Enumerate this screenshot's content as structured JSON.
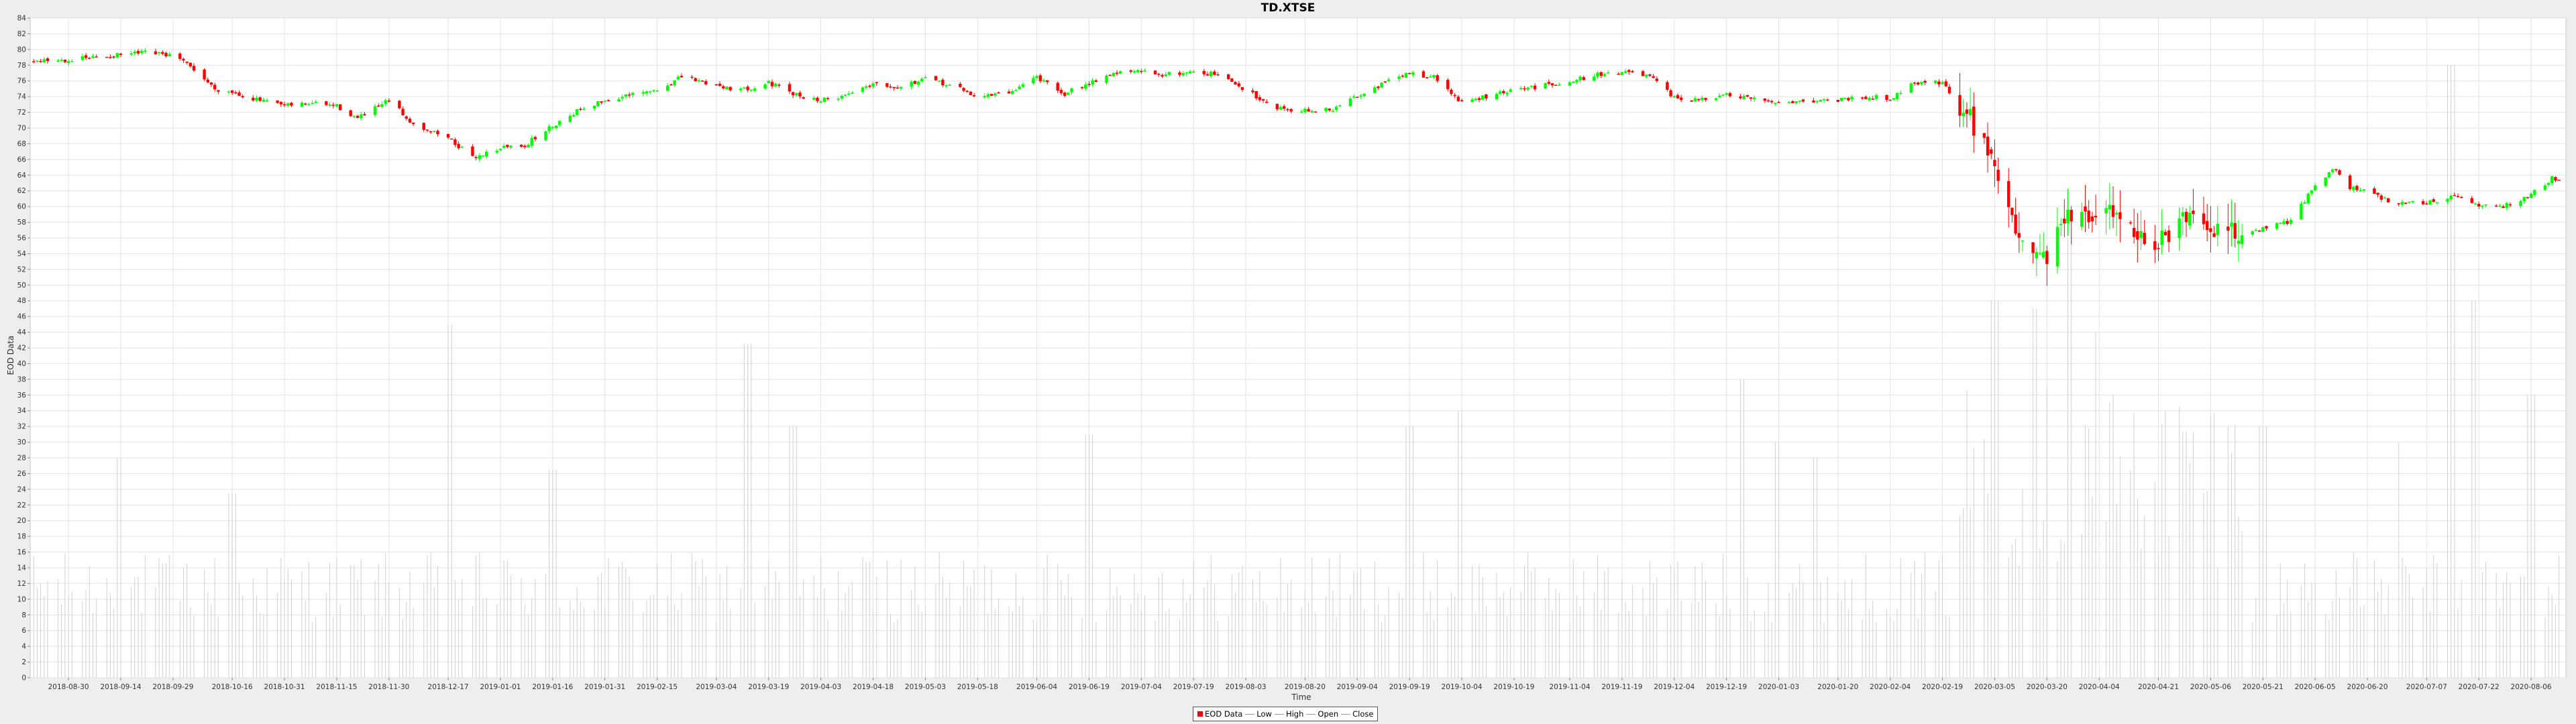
{
  "title": "TD.XTSE",
  "colors": {
    "background": "#eeeeee",
    "plot_background": "#ffffff",
    "grid": "#e3e3e3",
    "up": "#00ff00",
    "down": "#ff0000",
    "volume": "#d0d0d0"
  },
  "legend": {
    "items": [
      {
        "label": "EOD Data",
        "swatch": "box",
        "color": "#ff0000"
      },
      {
        "label": "Low",
        "swatch": "line",
        "color": "#999999"
      },
      {
        "label": "High",
        "swatch": "line",
        "color": "#999999"
      },
      {
        "label": "Open",
        "swatch": "line",
        "color": "#999999"
      },
      {
        "label": "Close",
        "swatch": "line",
        "color": "#999999"
      }
    ]
  },
  "chart_data": {
    "type": "candlestick",
    "title": "TD.XTSE",
    "xlabel": "Time",
    "ylabel": "EOD Data",
    "ylim": [
      0,
      84
    ],
    "ytick_step": 2,
    "grid": true,
    "legend_position": "bottom",
    "x_tick_labels": [
      "2018-08-30",
      "2018-09-14",
      "2018-09-29",
      "2018-10-16",
      "2018-10-31",
      "2018-11-15",
      "2018-11-30",
      "2018-12-17",
      "2019-01-01",
      "2019-01-16",
      "2019-01-31",
      "2019-02-15",
      "2019-03-04",
      "2019-03-19",
      "2019-04-03",
      "2019-04-18",
      "2019-05-03",
      "2019-05-18",
      "2019-06-04",
      "2019-06-19",
      "2019-07-04",
      "2019-07-19",
      "2019-08-03",
      "2019-08-20",
      "2019-09-04",
      "2019-09-19",
      "2019-10-04",
      "2019-10-19",
      "2019-11-04",
      "2019-11-19",
      "2019-12-04",
      "2019-12-19",
      "2020-01-03",
      "2020-01-20",
      "2020-02-04",
      "2020-02-19",
      "2020-03-05",
      "2020-03-20",
      "2020-04-04",
      "2020-04-21",
      "2020-05-06",
      "2020-05-21",
      "2020-06-05",
      "2020-06-20",
      "2020-07-07",
      "2020-07-22",
      "2020-08-06"
    ],
    "close_series": [
      {
        "date": "2018-08-23",
        "close": 78.6
      },
      {
        "date": "2018-08-30",
        "close": 78.7
      },
      {
        "date": "2018-09-07",
        "close": 79.0
      },
      {
        "date": "2018-09-14",
        "close": 79.3
      },
      {
        "date": "2018-09-21",
        "close": 79.6
      },
      {
        "date": "2018-09-29",
        "close": 79.2
      },
      {
        "date": "2018-10-05",
        "close": 77.5
      },
      {
        "date": "2018-10-11",
        "close": 75.0
      },
      {
        "date": "2018-10-16",
        "close": 74.6
      },
      {
        "date": "2018-10-23",
        "close": 73.6
      },
      {
        "date": "2018-10-31",
        "close": 72.8
      },
      {
        "date": "2018-11-08",
        "close": 73.2
      },
      {
        "date": "2018-11-15",
        "close": 72.8
      },
      {
        "date": "2018-11-21",
        "close": 71.2
      },
      {
        "date": "2018-11-30",
        "close": 73.5
      },
      {
        "date": "2018-12-07",
        "close": 70.5
      },
      {
        "date": "2018-12-17",
        "close": 68.8
      },
      {
        "date": "2018-12-24",
        "close": 66.2
      },
      {
        "date": "2019-01-01",
        "close": 67.5
      },
      {
        "date": "2019-01-08",
        "close": 67.8
      },
      {
        "date": "2019-01-16",
        "close": 70.3
      },
      {
        "date": "2019-01-24",
        "close": 72.5
      },
      {
        "date": "2019-01-31",
        "close": 73.5
      },
      {
        "date": "2019-02-08",
        "close": 74.2
      },
      {
        "date": "2019-02-15",
        "close": 74.8
      },
      {
        "date": "2019-02-22",
        "close": 76.5
      },
      {
        "date": "2019-03-04",
        "close": 75.5
      },
      {
        "date": "2019-03-11",
        "close": 74.8
      },
      {
        "date": "2019-03-19",
        "close": 75.8
      },
      {
        "date": "2019-03-26",
        "close": 74.3
      },
      {
        "date": "2019-04-03",
        "close": 73.5
      },
      {
        "date": "2019-04-10",
        "close": 74.2
      },
      {
        "date": "2019-04-18",
        "close": 75.8
      },
      {
        "date": "2019-04-25",
        "close": 75.3
      },
      {
        "date": "2019-05-03",
        "close": 76.2
      },
      {
        "date": "2019-05-10",
        "close": 75.5
      },
      {
        "date": "2019-05-18",
        "close": 74.0
      },
      {
        "date": "2019-05-27",
        "close": 74.5
      },
      {
        "date": "2019-06-04",
        "close": 76.6
      },
      {
        "date": "2019-06-11",
        "close": 74.2
      },
      {
        "date": "2019-06-19",
        "close": 75.8
      },
      {
        "date": "2019-06-26",
        "close": 77.0
      },
      {
        "date": "2019-07-04",
        "close": 77.2
      },
      {
        "date": "2019-07-11",
        "close": 76.8
      },
      {
        "date": "2019-07-19",
        "close": 77.2
      },
      {
        "date": "2019-07-26",
        "close": 76.8
      },
      {
        "date": "2019-08-03",
        "close": 74.8
      },
      {
        "date": "2019-08-12",
        "close": 72.6
      },
      {
        "date": "2019-08-20",
        "close": 72.2
      },
      {
        "date": "2019-08-28",
        "close": 72.3
      },
      {
        "date": "2019-09-04",
        "close": 74.2
      },
      {
        "date": "2019-09-12",
        "close": 75.8
      },
      {
        "date": "2019-09-19",
        "close": 77.0
      },
      {
        "date": "2019-09-26",
        "close": 76.5
      },
      {
        "date": "2019-10-04",
        "close": 73.2
      },
      {
        "date": "2019-10-11",
        "close": 74.0
      },
      {
        "date": "2019-10-19",
        "close": 74.8
      },
      {
        "date": "2019-10-26",
        "close": 75.3
      },
      {
        "date": "2019-11-04",
        "close": 76.0
      },
      {
        "date": "2019-11-12",
        "close": 76.8
      },
      {
        "date": "2019-11-19",
        "close": 77.2
      },
      {
        "date": "2019-11-27",
        "close": 76.5
      },
      {
        "date": "2019-12-04",
        "close": 73.8
      },
      {
        "date": "2019-12-11",
        "close": 73.5
      },
      {
        "date": "2019-12-19",
        "close": 74.2
      },
      {
        "date": "2019-12-27",
        "close": 73.6
      },
      {
        "date": "2020-01-03",
        "close": 73.3
      },
      {
        "date": "2020-01-10",
        "close": 73.5
      },
      {
        "date": "2020-01-20",
        "close": 73.6
      },
      {
        "date": "2020-01-27",
        "close": 74.0
      },
      {
        "date": "2020-02-04",
        "close": 73.8
      },
      {
        "date": "2020-02-11",
        "close": 75.8
      },
      {
        "date": "2020-02-19",
        "close": 75.8
      },
      {
        "date": "2020-02-25",
        "close": 72.0
      },
      {
        "date": "2020-03-01",
        "close": 69.5
      },
      {
        "date": "2020-03-05",
        "close": 65.5
      },
      {
        "date": "2020-03-10",
        "close": 57.5
      },
      {
        "date": "2020-03-15",
        "close": 55.5
      },
      {
        "date": "2020-03-20",
        "close": 53.5
      },
      {
        "date": "2020-03-25",
        "close": 59.0
      },
      {
        "date": "2020-03-30",
        "close": 58.0
      },
      {
        "date": "2020-04-04",
        "close": 59.0
      },
      {
        "date": "2020-04-10",
        "close": 59.5
      },
      {
        "date": "2020-04-15",
        "close": 56.5
      },
      {
        "date": "2020-04-21",
        "close": 55.0
      },
      {
        "date": "2020-04-28",
        "close": 58.0
      },
      {
        "date": "2020-05-06",
        "close": 57.2
      },
      {
        "date": "2020-05-13",
        "close": 56.5
      },
      {
        "date": "2020-05-21",
        "close": 57.2
      },
      {
        "date": "2020-05-28",
        "close": 58.0
      },
      {
        "date": "2020-06-05",
        "close": 62.5
      },
      {
        "date": "2020-06-10",
        "close": 65.0
      },
      {
        "date": "2020-06-15",
        "close": 62.5
      },
      {
        "date": "2020-06-20",
        "close": 61.8
      },
      {
        "date": "2020-06-28",
        "close": 60.5
      },
      {
        "date": "2020-07-07",
        "close": 60.5
      },
      {
        "date": "2020-07-14",
        "close": 61.3
      },
      {
        "date": "2020-07-22",
        "close": 60.2
      },
      {
        "date": "2020-07-29",
        "close": 60.0
      },
      {
        "date": "2020-08-06",
        "close": 61.5
      },
      {
        "date": "2020-08-12",
        "close": 63.6
      }
    ],
    "volume_spikes": [
      {
        "date": "2018-09-14",
        "value": 28
      },
      {
        "date": "2018-10-16",
        "value": 23.5
      },
      {
        "date": "2018-12-17",
        "value": 45
      },
      {
        "date": "2019-01-16",
        "value": 26.5
      },
      {
        "date": "2019-03-13",
        "value": 42.5
      },
      {
        "date": "2019-03-26",
        "value": 32
      },
      {
        "date": "2019-06-19",
        "value": 31
      },
      {
        "date": "2019-09-19",
        "value": 32
      },
      {
        "date": "2019-10-04",
        "value": 34
      },
      {
        "date": "2019-12-23",
        "value": 38
      },
      {
        "date": "2020-01-03",
        "value": 30
      },
      {
        "date": "2020-01-13",
        "value": 28
      },
      {
        "date": "2020-03-05",
        "value": 48
      },
      {
        "date": "2020-03-16",
        "value": 47
      },
      {
        "date": "2020-03-27",
        "value": 56
      },
      {
        "date": "2020-04-04",
        "value": 44
      },
      {
        "date": "2020-05-21",
        "value": 32
      },
      {
        "date": "2020-06-28",
        "value": 30
      },
      {
        "date": "2020-07-14",
        "value": 78
      },
      {
        "date": "2020-07-20",
        "value": 48
      },
      {
        "date": "2020-08-06",
        "value": 36
      }
    ]
  }
}
